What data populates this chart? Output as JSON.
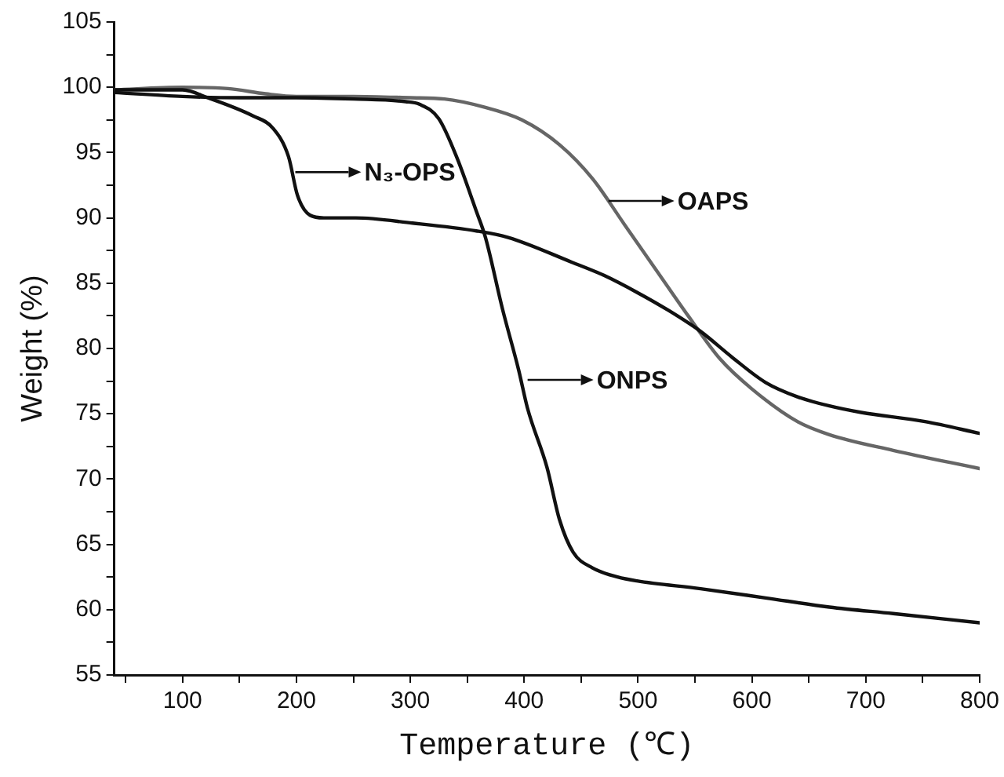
{
  "chart_data": {
    "type": "line",
    "xlabel": "Temperature (℃)",
    "ylabel": "Weight (%)",
    "xlim": [
      40,
      800
    ],
    "ylim": [
      55,
      105
    ],
    "xticks": [
      {
        "value": 50,
        "label": null
      },
      100,
      {
        "value": 150,
        "label": null
      },
      200,
      {
        "value": 250,
        "label": null
      },
      300,
      {
        "value": 350,
        "label": null
      },
      400,
      {
        "value": 450,
        "label": null
      },
      500,
      {
        "value": 550,
        "label": null
      },
      600,
      {
        "value": 650,
        "label": null
      },
      700,
      {
        "value": 750,
        "label": null
      },
      800
    ],
    "yticks": [
      55,
      {
        "value": 57.5,
        "label": null
      },
      60,
      {
        "value": 62.5,
        "label": null
      },
      65,
      {
        "value": 67.5,
        "label": null
      },
      70,
      {
        "value": 72.5,
        "label": null
      },
      75,
      {
        "value": 77.5,
        "label": null
      },
      80,
      {
        "value": 82.5,
        "label": null
      },
      85,
      {
        "value": 87.5,
        "label": null
      },
      90,
      {
        "value": 92.5,
        "label": null
      },
      95,
      {
        "value": 97.5,
        "label": null
      },
      100,
      {
        "value": 102.5,
        "label": null
      },
      105
    ],
    "grid": false,
    "legend": false,
    "marker": "none",
    "line_style": "solid",
    "series": [
      {
        "color": "#111111",
        "x": [
          40,
          100,
          122,
          162,
          179,
          193,
          201,
          212,
          224,
          252,
          302,
          358,
          386,
          442,
          470,
          499,
          527,
          555,
          583,
          612,
          640,
          668,
          696,
          752,
          800
        ],
        "values": [
          99.8,
          99.8,
          99.2,
          97.8,
          96.9,
          94.7,
          91.7,
          90.2,
          90.0,
          90.0,
          89.6,
          89.0,
          88.5,
          86.6,
          85.6,
          84.3,
          82.9,
          81.3,
          79.3,
          77.4,
          76.3,
          75.6,
          75.1,
          74.4,
          73.5
        ]
      },
      {
        "color": "#111111",
        "x": [
          40,
          100,
          150,
          200,
          250,
          296,
          308,
          325,
          341,
          358,
          366,
          381,
          395,
          403,
          420,
          431,
          443,
          460,
          482,
          499,
          555,
          612,
          668,
          724,
          800
        ],
        "values": [
          99.6,
          99.3,
          99.2,
          99.2,
          99.1,
          98.9,
          98.7,
          97.6,
          94.6,
          90.5,
          88.5,
          83,
          78.4,
          75.4,
          70.9,
          66.9,
          64.4,
          63.2,
          62.5,
          62.2,
          61.6,
          60.9,
          60.2,
          59.7,
          59.0
        ]
      },
      {
        "color": "#666666",
        "x": [
          40,
          100,
          140,
          173,
          200,
          250,
          300,
          330,
          364,
          398,
          431,
          460,
          488,
          516,
          544,
          572,
          600,
          640,
          668,
          724,
          800
        ],
        "values": [
          99.8,
          100,
          99.9,
          99.5,
          99.3,
          99.3,
          99.2,
          99.1,
          98.5,
          97.5,
          95.6,
          93,
          89.5,
          86,
          82.5,
          79.2,
          76.9,
          74.4,
          73.4,
          72.2,
          70.8
        ]
      }
    ],
    "annotations": [
      {
        "text": "N₃-OPS",
        "x": 199,
        "y": 93.5
      },
      {
        "text": "OAPS",
        "x": 474,
        "y": 91.3
      },
      {
        "text": "ONPS",
        "x": 403,
        "y": 77.6
      }
    ]
  }
}
